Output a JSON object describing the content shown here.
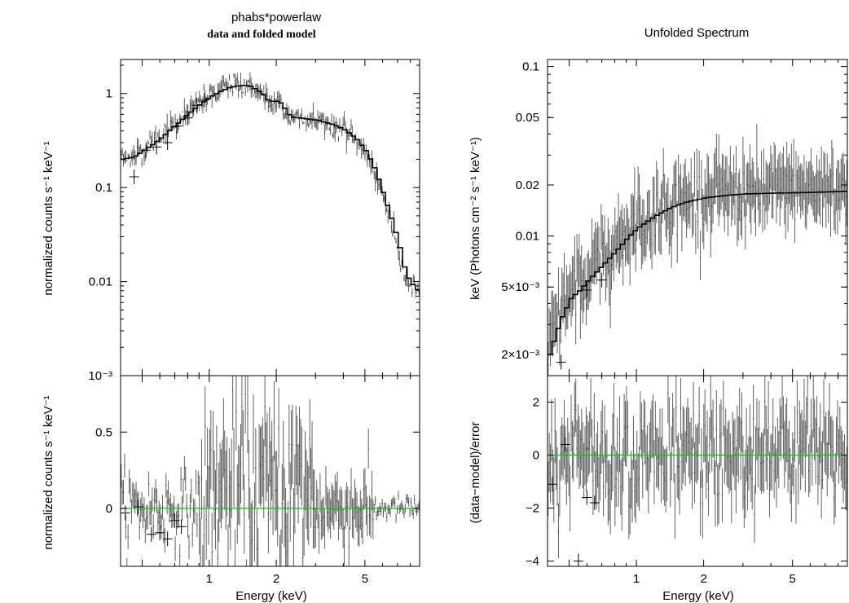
{
  "figure": {
    "left_title": "phabs*powerlaw",
    "left_subtitle": "data and folded model",
    "right_title": "Unfolded Spectrum"
  },
  "colors": {
    "model": "#000000",
    "data": "#000000",
    "error_bars": "#606060",
    "zero_line": "#00cc00",
    "frame": "#000000"
  },
  "chart_data": [
    {
      "type": "scatter",
      "panel": "left-top",
      "xlabel": "",
      "ylabel": "normalized counts s⁻¹ keV⁻¹",
      "xscale": "log",
      "yscale": "log",
      "xlim": [
        0.4,
        8.8
      ],
      "ylim": [
        0.001,
        2.3
      ],
      "y_ticks": [
        {
          "value": 1,
          "label": "1"
        },
        {
          "value": 0.1,
          "label": "0.1"
        },
        {
          "value": 0.01,
          "label": "0.01"
        },
        {
          "value": 0.001,
          "label": "10⁻³"
        }
      ],
      "model": {
        "x": [
          0.4,
          0.45,
          0.5,
          0.55,
          0.6,
          0.7,
          0.8,
          0.9,
          1.0,
          1.1,
          1.2,
          1.3,
          1.4,
          1.5,
          1.6,
          1.7,
          1.8,
          1.9,
          2.0,
          2.1,
          2.2,
          2.3,
          2.5,
          2.8,
          3.0,
          3.5,
          4.0,
          4.5,
          5.0,
          5.5,
          6.0,
          6.5,
          7.0,
          7.5,
          8.0,
          8.5,
          8.8
        ],
        "y": [
          0.2,
          0.21,
          0.25,
          0.29,
          0.34,
          0.47,
          0.62,
          0.78,
          0.93,
          1.05,
          1.15,
          1.2,
          1.22,
          1.2,
          1.1,
          1.0,
          0.85,
          0.82,
          0.83,
          0.76,
          0.62,
          0.56,
          0.55,
          0.53,
          0.52,
          0.47,
          0.41,
          0.33,
          0.24,
          0.15,
          0.08,
          0.045,
          0.025,
          0.012,
          0.0095,
          0.008,
          0.0075
        ]
      },
      "series": [
        {
          "x": [
            0.46,
            0.52,
            0.58,
            0.65,
            0.72,
            0.8,
            0.88,
            0.95
          ],
          "y": [
            0.13,
            0.25,
            0.27,
            0.3,
            0.45,
            0.55,
            0.75,
            0.85
          ]
        }
      ]
    },
    {
      "type": "scatter",
      "panel": "left-bottom",
      "xlabel": "Energy (keV)",
      "ylabel": "normalized counts s⁻¹ keV⁻¹",
      "xscale": "log",
      "xlim": [
        0.4,
        8.8
      ],
      "ylim": [
        -0.38,
        0.87
      ],
      "y_ticks": [
        {
          "value": 0.5,
          "label": "0.5"
        },
        {
          "value": 0,
          "label": "0"
        }
      ],
      "x_ticks": [
        {
          "value": 1,
          "label": "1"
        },
        {
          "value": 2,
          "label": "2"
        },
        {
          "value": 5,
          "label": "5"
        }
      ],
      "zero_line": 0,
      "series": [
        {
          "x": [
            0.42,
            0.48,
            0.55,
            0.6,
            0.65,
            0.7,
            0.75
          ],
          "y": [
            -0.03,
            0.01,
            -0.17,
            -0.16,
            -0.2,
            -0.08,
            -0.12
          ]
        }
      ]
    },
    {
      "type": "scatter",
      "panel": "right-top",
      "title": "Unfolded Spectrum",
      "xlabel": "",
      "ylabel": "keV (Photons cm⁻² s⁻¹ keV⁻¹)",
      "xscale": "log",
      "yscale": "log",
      "xlim": [
        0.4,
        8.8
      ],
      "ylim": [
        0.0015,
        0.11
      ],
      "y_ticks": [
        {
          "value": 0.1,
          "label": "0.1"
        },
        {
          "value": 0.05,
          "label": "0.05"
        },
        {
          "value": 0.02,
          "label": "0.02"
        },
        {
          "value": 0.01,
          "label": "0.01"
        },
        {
          "value": 0.005,
          "label": "5×10⁻³"
        },
        {
          "value": 0.002,
          "label": "2×10⁻³"
        }
      ],
      "model": {
        "x": [
          0.4,
          0.45,
          0.5,
          0.55,
          0.6,
          0.7,
          0.8,
          0.9,
          1.0,
          1.2,
          1.4,
          1.6,
          1.8,
          2.0,
          2.5,
          3.0,
          4.0,
          5.0,
          6.0,
          7.0,
          8.0,
          8.8
        ],
        "y": [
          0.002,
          0.0032,
          0.0043,
          0.0048,
          0.0055,
          0.0068,
          0.0082,
          0.0098,
          0.0112,
          0.0132,
          0.0147,
          0.0157,
          0.0163,
          0.0168,
          0.0174,
          0.0177,
          0.0179,
          0.018,
          0.0181,
          0.0182,
          0.0183,
          0.0184
        ]
      },
      "series": [
        {
          "x": [
            0.46,
            0.6,
            0.7
          ],
          "y": [
            0.0018,
            0.0048,
            0.0055
          ]
        }
      ]
    },
    {
      "type": "scatter",
      "panel": "right-bottom",
      "xlabel": "Energy (keV)",
      "ylabel": "(data−model)/error",
      "xscale": "log",
      "xlim": [
        0.4,
        8.8
      ],
      "ylim": [
        -4.2,
        3.0
      ],
      "y_ticks": [
        {
          "value": 2,
          "label": "2"
        },
        {
          "value": 0,
          "label": "0"
        },
        {
          "value": -2,
          "label": "−2"
        },
        {
          "value": -4,
          "label": "−4"
        }
      ],
      "x_ticks": [
        {
          "value": 1,
          "label": "1"
        },
        {
          "value": 2,
          "label": "2"
        },
        {
          "value": 5,
          "label": "5"
        }
      ],
      "zero_line": 0,
      "series": [
        {
          "x": [
            0.42,
            0.48,
            0.55,
            0.6,
            0.65
          ],
          "y": [
            -1.1,
            0.4,
            -4.0,
            -1.6,
            -1.8
          ]
        }
      ]
    }
  ]
}
